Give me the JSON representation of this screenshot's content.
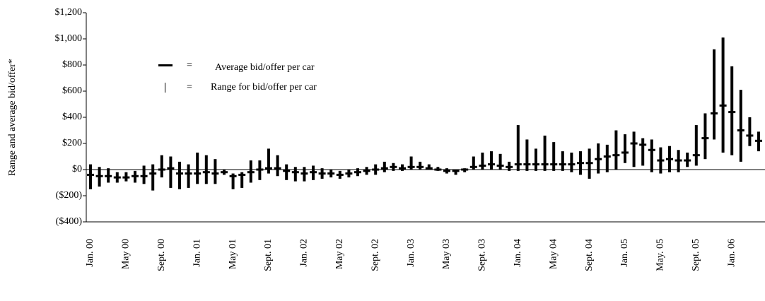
{
  "chart_data": {
    "type": "range",
    "y_label": "Range and average bid/offer*",
    "categories": [
      "Jan. 00",
      null,
      null,
      null,
      "May 00",
      null,
      null,
      null,
      "Sept. 00",
      null,
      null,
      null,
      "Jan. 01",
      null,
      null,
      null,
      "May 01",
      null,
      null,
      null,
      "Sept. 01",
      null,
      null,
      null,
      "Jan. 02",
      null,
      null,
      null,
      "May 02",
      null,
      null,
      null,
      "Sept. 02",
      null,
      null,
      null,
      "Jan. 03",
      null,
      null,
      null,
      "May 03",
      null,
      null,
      null,
      "Sept. 03",
      null,
      null,
      null,
      "Jan. 04",
      null,
      null,
      null,
      "May 04",
      null,
      null,
      null,
      "Sept. 04",
      null,
      null,
      null,
      "Jan. 05",
      null,
      null,
      null,
      "May. 05",
      null,
      null,
      null,
      "Sept. 05",
      null,
      null,
      null,
      "Jan. 06",
      null,
      null,
      null
    ],
    "legend_equals": "=",
    "series": [
      {
        "name": "Average bid/offer per car",
        "color": "#000000",
        "values": [
          -40,
          -50,
          -50,
          -60,
          -60,
          -50,
          -50,
          -30,
          0,
          10,
          -30,
          -30,
          -30,
          -20,
          -30,
          -20,
          -50,
          -40,
          -20,
          0,
          10,
          10,
          -10,
          -20,
          -30,
          -20,
          -30,
          -30,
          -40,
          -30,
          -20,
          -10,
          0,
          10,
          20,
          10,
          20,
          20,
          10,
          0,
          -10,
          -10,
          0,
          20,
          30,
          40,
          30,
          20,
          40,
          40,
          40,
          40,
          40,
          40,
          40,
          50,
          50,
          80,
          100,
          110,
          130,
          200,
          190,
          150,
          70,
          80,
          70,
          70,
          110,
          240,
          430,
          490,
          440,
          300,
          260,
          220
        ]
      },
      {
        "name": "Range for bid/offer per car",
        "color": "#000000",
        "low": [
          -150,
          -130,
          -100,
          -100,
          -90,
          -100,
          -110,
          -160,
          -60,
          -140,
          -150,
          -140,
          -110,
          -110,
          -110,
          -40,
          -150,
          -140,
          -100,
          -80,
          -30,
          -50,
          -80,
          -90,
          -90,
          -80,
          -70,
          -60,
          -70,
          -60,
          -50,
          -40,
          -40,
          -20,
          -10,
          -10,
          0,
          0,
          0,
          -10,
          -30,
          -40,
          -20,
          0,
          0,
          0,
          0,
          -10,
          -10,
          -10,
          -10,
          -10,
          -10,
          -10,
          -20,
          -40,
          -70,
          -30,
          -20,
          0,
          50,
          20,
          30,
          -20,
          -30,
          -20,
          -20,
          20,
          30,
          80,
          230,
          130,
          110,
          60,
          180,
          140
        ],
        "high": [
          40,
          20,
          10,
          -20,
          -20,
          -10,
          30,
          40,
          110,
          100,
          60,
          40,
          130,
          110,
          80,
          0,
          -30,
          -20,
          70,
          70,
          160,
          110,
          40,
          20,
          20,
          30,
          10,
          0,
          -10,
          0,
          10,
          20,
          40,
          60,
          50,
          40,
          100,
          60,
          40,
          20,
          10,
          0,
          10,
          100,
          130,
          140,
          120,
          60,
          340,
          230,
          160,
          260,
          210,
          140,
          130,
          140,
          160,
          200,
          190,
          300,
          270,
          290,
          240,
          230,
          170,
          180,
          150,
          130,
          340,
          430,
          920,
          1010,
          790,
          610,
          400,
          290
        ]
      }
    ],
    "ylim": [
      -400,
      1200
    ],
    "yticks": [
      {
        "value": -400,
        "label": "($400)"
      },
      {
        "value": -200,
        "label": "($200)"
      },
      {
        "value": 0,
        "label": "$0"
      },
      {
        "value": 200,
        "label": "$200"
      },
      {
        "value": 400,
        "label": "$400"
      },
      {
        "value": 600,
        "label": "$600"
      },
      {
        "value": 800,
        "label": "$800"
      },
      {
        "value": 1000,
        "label": "$1,000"
      },
      {
        "value": 1200,
        "label": "$1,200"
      }
    ]
  }
}
